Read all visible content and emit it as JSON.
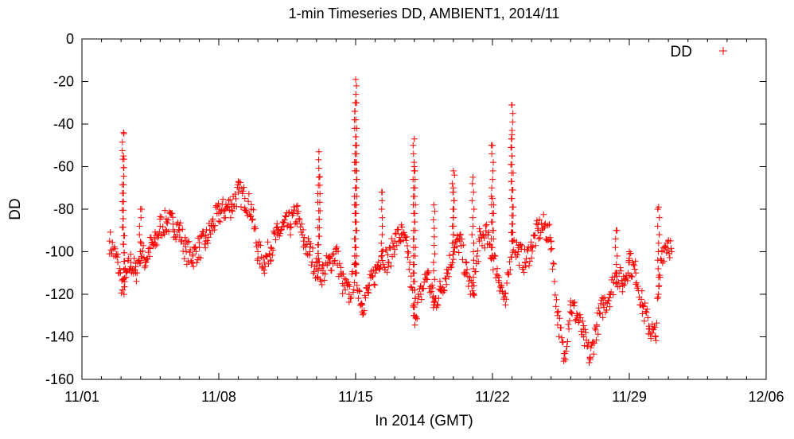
{
  "chart_data": {
    "type": "scatter",
    "title": "1-min Timeseries DD, AMBIENT1, 2014/11",
    "xlabel": "In 2014 (GMT)",
    "ylabel": "DD",
    "xlim": [
      "2014-11-01",
      "2014-12-06"
    ],
    "ylim": [
      -160,
      0
    ],
    "x_ticks": [
      "11/01",
      "11/08",
      "11/15",
      "11/22",
      "11/29",
      "12/06"
    ],
    "y_ticks": [
      0,
      -20,
      -40,
      -60,
      -80,
      -100,
      -120,
      -140,
      -160
    ],
    "legend_position": "top-right",
    "marker": "+",
    "color": "#ff0000",
    "series": [
      {
        "name": "DD",
        "x": [
          "2014-11-02T10:00",
          "2014-11-02T20:00",
          "2014-11-03T02:00",
          "2014-11-03T06:00",
          "2014-11-03T12:00",
          "2014-11-03T18:00",
          "2014-11-04T00:00",
          "2014-11-04T06:00",
          "2014-11-04T12:00",
          "2014-11-04T18:00",
          "2014-11-05T00:00",
          "2014-11-05T08:00",
          "2014-11-05T16:00",
          "2014-11-06T00:00",
          "2014-11-06T08:00",
          "2014-11-06T16:00",
          "2014-11-07T00:00",
          "2014-11-07T08:00",
          "2014-11-07T16:00",
          "2014-11-08T00:00",
          "2014-11-08T08:00",
          "2014-11-08T16:00",
          "2014-11-09T00:00",
          "2014-11-09T08:00",
          "2014-11-09T16:00",
          "2014-11-10T00:00",
          "2014-11-10T08:00",
          "2014-11-10T16:00",
          "2014-11-11T00:00",
          "2014-11-11T08:00",
          "2014-11-11T16:00",
          "2014-11-12T00:00",
          "2014-11-12T08:00",
          "2014-11-12T16:00",
          "2014-11-13T00:00",
          "2014-11-13T08:00",
          "2014-11-13T16:00",
          "2014-11-14T00:00",
          "2014-11-14T08:00",
          "2014-11-14T16:00",
          "2014-11-15T00:00",
          "2014-11-15T08:00",
          "2014-11-15T16:00",
          "2014-11-16T00:00",
          "2014-11-16T08:00",
          "2014-11-16T16:00",
          "2014-11-17T00:00",
          "2014-11-17T08:00",
          "2014-11-17T16:00",
          "2014-11-18T00:00",
          "2014-11-18T08:00",
          "2014-11-18T16:00",
          "2014-11-19T00:00",
          "2014-11-19T08:00",
          "2014-11-19T16:00",
          "2014-11-20T00:00",
          "2014-11-20T08:00",
          "2014-11-20T16:00",
          "2014-11-21T00:00",
          "2014-11-21T08:00",
          "2014-11-21T16:00",
          "2014-11-22T00:00",
          "2014-11-22T08:00",
          "2014-11-22T16:00",
          "2014-11-23T00:00",
          "2014-11-23T08:00",
          "2014-11-23T16:00",
          "2014-11-24T00:00",
          "2014-11-24T08:00",
          "2014-11-24T16:00",
          "2014-11-25T00:00",
          "2014-11-25T08:00",
          "2014-11-25T16:00",
          "2014-11-26T00:00",
          "2014-11-26T08:00",
          "2014-11-26T16:00",
          "2014-11-27T00:00",
          "2014-11-27T08:00",
          "2014-11-27T16:00",
          "2014-11-28T00:00",
          "2014-11-28T08:00",
          "2014-11-28T16:00",
          "2014-11-29T00:00",
          "2014-11-29T08:00",
          "2014-11-29T16:00",
          "2014-11-30T00:00",
          "2014-11-30T08:00",
          "2014-11-30T16:00",
          "2014-12-01T00:00",
          "2014-12-01T04:00"
        ],
        "y": [
          -95,
          -105,
          -118,
          -112,
          -105,
          -110,
          -100,
          -104,
          -98,
          -96,
          -88,
          -86,
          -87,
          -90,
          -100,
          -102,
          -98,
          -95,
          -88,
          -82,
          -80,
          -78,
          -72,
          -75,
          -80,
          -100,
          -105,
          -98,
          -92,
          -88,
          -87,
          -82,
          -95,
          -100,
          -108,
          -110,
          -105,
          -100,
          -115,
          -120,
          -110,
          -125,
          -118,
          -110,
          -100,
          -105,
          -95,
          -92,
          -100,
          -130,
          -120,
          -110,
          -125,
          -118,
          -110,
          -100,
          -95,
          -110,
          -120,
          -95,
          -92,
          -102,
          -112,
          -125,
          -95,
          -100,
          -105,
          -98,
          -90,
          -88,
          -95,
          -130,
          -150,
          -125,
          -130,
          -140,
          -150,
          -135,
          -125,
          -120,
          -110,
          -115,
          -105,
          -110,
          -125,
          -135,
          -140,
          -100,
          -95,
          -100
        ],
        "spikes": [
          {
            "x": "2014-11-03T03:00",
            "y": -44
          },
          {
            "x": "2014-11-03T03:00",
            "y": -55
          },
          {
            "x": "2014-11-04T00:00",
            "y": -80
          },
          {
            "x": "2014-11-13T03:00",
            "y": -53
          },
          {
            "x": "2014-11-13T03:00",
            "y": -65
          },
          {
            "x": "2014-11-15T00:00",
            "y": -19
          },
          {
            "x": "2014-11-15T00:00",
            "y": -30
          },
          {
            "x": "2014-11-15T00:00",
            "y": -50
          },
          {
            "x": "2014-11-16T08:00",
            "y": -72
          },
          {
            "x": "2014-11-18T00:00",
            "y": -47
          },
          {
            "x": "2014-11-18T00:00",
            "y": -60
          },
          {
            "x": "2014-11-19T00:00",
            "y": -78
          },
          {
            "x": "2014-11-20T00:00",
            "y": -62
          },
          {
            "x": "2014-11-20T00:00",
            "y": -70
          },
          {
            "x": "2014-11-21T00:00",
            "y": -65
          },
          {
            "x": "2014-11-22T00:00",
            "y": -50
          },
          {
            "x": "2014-11-22T00:00",
            "y": -75
          },
          {
            "x": "2014-11-23T00:00",
            "y": -31
          },
          {
            "x": "2014-11-23T00:00",
            "y": -45
          },
          {
            "x": "2014-11-28T08:00",
            "y": -90
          },
          {
            "x": "2014-11-29T00:00",
            "y": -100
          },
          {
            "x": "2014-11-30T12:00",
            "y": -79
          }
        ]
      }
    ]
  }
}
